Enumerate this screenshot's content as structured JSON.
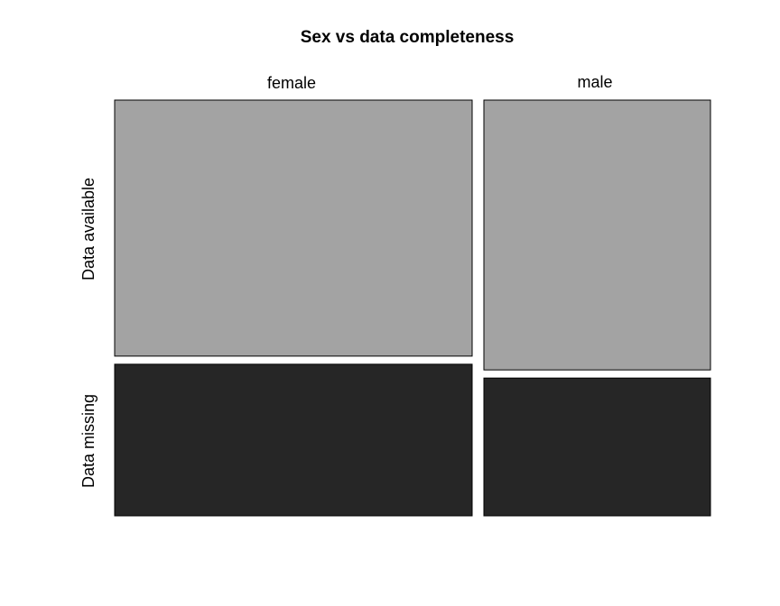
{
  "chart_data": {
    "type": "mosaic",
    "title": "Sex vs data completeness",
    "columns": [
      "female",
      "male"
    ],
    "column_proportions": [
      0.612,
      0.388
    ],
    "rows": [
      "Data available",
      "Data missing"
    ],
    "colors": {
      "Data available": "#a3a3a3",
      "Data missing": "#262626",
      "border": "#000000"
    },
    "cells": [
      {
        "column": "female",
        "row": "Data available",
        "proportion": 0.628
      },
      {
        "column": "female",
        "row": "Data missing",
        "proportion": 0.372
      },
      {
        "column": "male",
        "row": "Data available",
        "proportion": 0.662
      },
      {
        "column": "male",
        "row": "Data missing",
        "proportion": 0.338
      }
    ]
  }
}
